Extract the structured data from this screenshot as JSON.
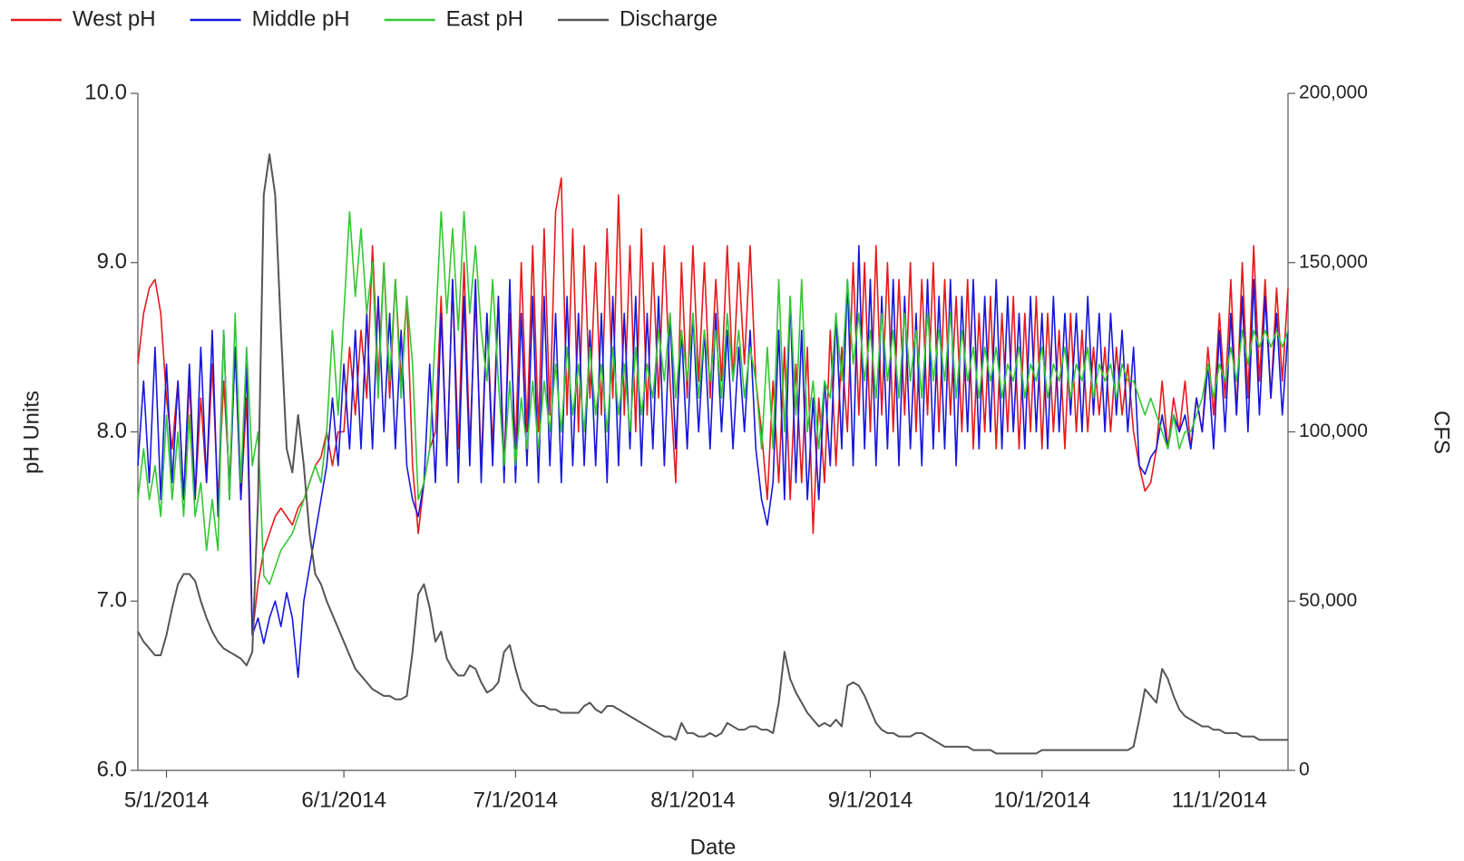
{
  "chart_data": {
    "type": "line",
    "x_label": "Date",
    "y_label": "pH Units",
    "y2_label": "CFS",
    "legend": "top-left",
    "grid": false,
    "xlim": [
      "4/26/2014",
      "11/13/2014"
    ],
    "xticks": [
      "5/1/2014",
      "6/1/2014",
      "7/1/2014",
      "8/1/2014",
      "9/1/2014",
      "10/1/2014",
      "11/1/2014"
    ],
    "ylim": [
      6,
      10
    ],
    "yticks": [
      {
        "value": 6,
        "label": "6.0"
      },
      {
        "value": 7,
        "label": "7.0"
      },
      {
        "value": 8,
        "label": "8.0"
      },
      {
        "value": 9,
        "label": "9.0"
      },
      {
        "value": 10,
        "label": "10.0"
      }
    ],
    "y2lim": [
      0,
      200000
    ],
    "y2ticks": [
      0,
      {
        "value": 50000,
        "label": "50,000"
      },
      {
        "value": 100000,
        "label": "100,000"
      },
      {
        "value": 150000,
        "label": "150,000"
      },
      {
        "value": 200000,
        "label": "200,000"
      }
    ],
    "x": [
      "4/26/2014",
      "4/27/2014",
      "4/28/2014",
      "4/29/2014",
      "4/30/2014",
      "5/1/2014",
      "5/2/2014",
      "5/3/2014",
      "5/4/2014",
      "5/5/2014",
      "5/6/2014",
      "5/7/2014",
      "5/8/2014",
      "5/9/2014",
      "5/10/2014",
      "5/11/2014",
      "5/12/2014",
      "5/13/2014",
      "5/14/2014",
      "5/15/2014",
      "5/16/2014",
      "5/17/2014",
      "5/18/2014",
      "5/19/2014",
      "5/20/2014",
      "5/21/2014",
      "5/22/2014",
      "5/23/2014",
      "5/24/2014",
      "5/25/2014",
      "5/26/2014",
      "5/27/2014",
      "5/28/2014",
      "5/29/2014",
      "5/30/2014",
      "5/31/2014",
      "6/1/2014",
      "6/2/2014",
      "6/3/2014",
      "6/4/2014",
      "6/5/2014",
      "6/6/2014",
      "6/7/2014",
      "6/8/2014",
      "6/9/2014",
      "6/10/2014",
      "6/11/2014",
      "6/12/2014",
      "6/13/2014",
      "6/14/2014",
      "6/15/2014",
      "6/16/2014",
      "6/17/2014",
      "6/18/2014",
      "6/19/2014",
      "6/20/2014",
      "6/21/2014",
      "6/22/2014",
      "6/23/2014",
      "6/24/2014",
      "6/25/2014",
      "6/26/2014",
      "6/27/2014",
      "6/28/2014",
      "6/29/2014",
      "6/30/2014",
      "7/1/2014",
      "7/2/2014",
      "7/3/2014",
      "7/4/2014",
      "7/5/2014",
      "7/6/2014",
      "7/7/2014",
      "7/8/2014",
      "7/9/2014",
      "7/10/2014",
      "7/11/2014",
      "7/12/2014",
      "7/13/2014",
      "7/14/2014",
      "7/15/2014",
      "7/16/2014",
      "7/17/2014",
      "7/18/2014",
      "7/19/2014",
      "7/20/2014",
      "7/21/2014",
      "7/22/2014",
      "7/23/2014",
      "7/24/2014",
      "7/25/2014",
      "7/26/2014",
      "7/27/2014",
      "7/28/2014",
      "7/29/2014",
      "7/30/2014",
      "7/31/2014",
      "8/1/2014",
      "8/2/2014",
      "8/3/2014",
      "8/4/2014",
      "8/5/2014",
      "8/6/2014",
      "8/7/2014",
      "8/8/2014",
      "8/9/2014",
      "8/10/2014",
      "8/11/2014",
      "8/12/2014",
      "8/13/2014",
      "8/14/2014",
      "8/15/2014",
      "8/16/2014",
      "8/17/2014",
      "8/18/2014",
      "8/19/2014",
      "8/20/2014",
      "8/21/2014",
      "8/22/2014",
      "8/23/2014",
      "8/24/2014",
      "8/25/2014",
      "8/26/2014",
      "8/27/2014",
      "8/28/2014",
      "8/29/2014",
      "8/30/2014",
      "8/31/2014",
      "9/1/2014",
      "9/2/2014",
      "9/3/2014",
      "9/4/2014",
      "9/5/2014",
      "9/6/2014",
      "9/7/2014",
      "9/8/2014",
      "9/9/2014",
      "9/10/2014",
      "9/11/2014",
      "9/12/2014",
      "9/13/2014",
      "9/14/2014",
      "9/15/2014",
      "9/16/2014",
      "9/17/2014",
      "9/18/2014",
      "9/19/2014",
      "9/20/2014",
      "9/21/2014",
      "9/22/2014",
      "9/23/2014",
      "9/24/2014",
      "9/25/2014",
      "9/26/2014",
      "9/27/2014",
      "9/28/2014",
      "9/29/2014",
      "9/30/2014",
      "10/1/2014",
      "10/2/2014",
      "10/3/2014",
      "10/4/2014",
      "10/5/2014",
      "10/6/2014",
      "10/7/2014",
      "10/8/2014",
      "10/9/2014",
      "10/10/2014",
      "10/11/2014",
      "10/12/2014",
      "10/13/2014",
      "10/14/2014",
      "10/15/2014",
      "10/16/2014",
      "10/17/2014",
      "10/18/2014",
      "10/19/2014",
      "10/20/2014",
      "10/21/2014",
      "10/22/2014",
      "10/23/2014",
      "10/24/2014",
      "10/25/2014",
      "10/26/2014",
      "10/27/2014",
      "10/28/2014",
      "10/29/2014",
      "10/30/2014",
      "10/31/2014",
      "11/1/2014",
      "11/2/2014",
      "11/3/2014",
      "11/4/2014",
      "11/5/2014",
      "11/6/2014",
      "11/7/2014",
      "11/8/2014",
      "11/9/2014",
      "11/10/2014",
      "11/11/2014",
      "11/12/2014",
      "11/13/2014"
    ],
    "series": [
      {
        "name": "West pH",
        "color": "#e8191c",
        "values": [
          8.4,
          8.7,
          8.85,
          8.9,
          8.7,
          8.2,
          7.9,
          8.3,
          7.6,
          8.3,
          7.6,
          8.2,
          7.7,
          8.4,
          7.6,
          8.3,
          7.7,
          8.5,
          7.6,
          8.2,
          6.8,
          7.1,
          7.3,
          7.4,
          7.5,
          7.55,
          7.5,
          7.45,
          7.55,
          7.6,
          7.7,
          7.8,
          7.85,
          8.0,
          7.8,
          8.0,
          8.0,
          8.5,
          8.1,
          8.6,
          8.2,
          9.1,
          8.3,
          9.0,
          8.2,
          8.9,
          8.3,
          8.8,
          7.8,
          7.4,
          7.7,
          7.9,
          8.0,
          8.8,
          7.8,
          8.9,
          7.9,
          9.0,
          7.9,
          8.8,
          7.8,
          8.7,
          7.9,
          8.8,
          7.8,
          8.7,
          7.9,
          9.0,
          8.0,
          9.1,
          8.0,
          9.2,
          8.1,
          9.3,
          9.5,
          8.1,
          9.2,
          8.0,
          9.1,
          8.2,
          9.0,
          8.1,
          9.2,
          8.2,
          9.4,
          8.1,
          9.1,
          8.0,
          9.2,
          8.1,
          9.0,
          8.2,
          9.1,
          8.3,
          7.7,
          9.0,
          8.2,
          9.1,
          8.3,
          9.0,
          8.2,
          8.9,
          8.3,
          9.1,
          8.3,
          9.0,
          8.4,
          9.1,
          8.3,
          8.0,
          7.6,
          8.3,
          7.7,
          8.5,
          7.6,
          8.4,
          7.7,
          8.5,
          7.4,
          8.2,
          7.7,
          8.6,
          7.8,
          8.5,
          8.0,
          9.0,
          8.1,
          9.0,
          8.0,
          9.1,
          8.1,
          9.0,
          8.0,
          8.9,
          8.1,
          9.0,
          8.0,
          8.9,
          8.1,
          9.0,
          8.0,
          8.9,
          8.1,
          8.8,
          8.0,
          8.9,
          7.9,
          8.7,
          8.0,
          8.8,
          7.9,
          8.7,
          8.0,
          8.8,
          7.9,
          8.7,
          8.0,
          8.8,
          7.9,
          8.7,
          8.0,
          8.6,
          7.9,
          8.7,
          8.0,
          8.6,
          8.0,
          8.5,
          8.1,
          8.5,
          8.0,
          8.5,
          8.1,
          8.4,
          8.0,
          7.8,
          7.65,
          7.7,
          7.9,
          8.3,
          7.9,
          8.2,
          8.0,
          8.3,
          7.9,
          8.2,
          8.0,
          8.5,
          8.1,
          8.7,
          8.2,
          8.9,
          8.1,
          9.0,
          8.2,
          9.1,
          8.3,
          8.9,
          8.2,
          8.85,
          8.3,
          8.85
        ]
      },
      {
        "name": "Middle pH",
        "color": "#1616de",
        "values": [
          7.8,
          8.3,
          7.7,
          8.5,
          7.6,
          8.4,
          7.7,
          8.3,
          7.6,
          8.4,
          7.6,
          8.5,
          7.7,
          8.6,
          7.5,
          8.6,
          7.6,
          8.5,
          7.6,
          8.4,
          6.8,
          6.9,
          6.75,
          6.9,
          7.0,
          6.85,
          7.05,
          6.9,
          6.55,
          7.0,
          7.2,
          7.4,
          7.6,
          7.8,
          8.2,
          7.8,
          8.4,
          7.9,
          8.6,
          7.9,
          8.7,
          7.9,
          8.8,
          8.0,
          8.7,
          7.9,
          8.6,
          7.8,
          7.6,
          7.5,
          7.7,
          8.4,
          7.7,
          8.7,
          7.8,
          8.9,
          7.7,
          8.8,
          7.8,
          8.9,
          7.7,
          8.7,
          7.8,
          8.8,
          7.7,
          8.9,
          7.7,
          8.7,
          7.8,
          8.8,
          7.7,
          8.8,
          7.8,
          8.7,
          7.7,
          8.8,
          7.8,
          8.7,
          7.8,
          8.6,
          7.8,
          8.7,
          7.7,
          8.8,
          7.8,
          8.7,
          7.9,
          8.8,
          7.8,
          8.7,
          7.9,
          8.8,
          7.8,
          8.7,
          7.9,
          8.6,
          7.9,
          8.7,
          8.0,
          8.6,
          7.9,
          8.7,
          8.0,
          8.6,
          7.9,
          8.5,
          8.0,
          8.6,
          7.9,
          7.6,
          7.45,
          7.7,
          8.6,
          7.6,
          8.8,
          7.7,
          8.6,
          7.6,
          8.2,
          7.6,
          8.3,
          7.8,
          8.7,
          7.9,
          8.9,
          7.8,
          9.1,
          7.9,
          8.9,
          7.8,
          8.8,
          7.9,
          8.9,
          7.8,
          8.8,
          7.9,
          8.7,
          7.8,
          8.9,
          7.9,
          8.8,
          7.9,
          8.9,
          7.8,
          8.8,
          8.0,
          8.9,
          7.9,
          8.8,
          8.0,
          8.9,
          7.9,
          8.8,
          8.0,
          8.7,
          7.9,
          8.8,
          8.0,
          8.7,
          7.9,
          8.8,
          8.0,
          8.7,
          8.1,
          8.7,
          8.0,
          8.8,
          8.1,
          8.7,
          8.0,
          8.7,
          8.1,
          8.6,
          8.0,
          8.5,
          7.8,
          7.75,
          7.85,
          7.9,
          8.1,
          7.9,
          8.1,
          8.0,
          8.1,
          7.9,
          8.2,
          8.0,
          8.4,
          7.9,
          8.6,
          8.0,
          8.7,
          8.1,
          8.8,
          8.0,
          8.9,
          8.1,
          8.8,
          8.2,
          8.7,
          8.1,
          8.6
        ]
      },
      {
        "name": "East pH",
        "color": "#33c733",
        "values": [
          7.6,
          7.9,
          7.6,
          7.8,
          7.5,
          8.1,
          7.6,
          8.0,
          7.5,
          8.1,
          7.5,
          7.7,
          7.3,
          7.6,
          7.3,
          8.6,
          7.6,
          8.7,
          7.7,
          8.5,
          7.8,
          8.0,
          7.15,
          7.1,
          7.2,
          7.3,
          7.35,
          7.4,
          7.5,
          7.6,
          7.7,
          7.8,
          7.7,
          8.0,
          8.6,
          8.1,
          8.7,
          9.3,
          8.8,
          9.2,
          8.7,
          9.0,
          8.2,
          9.0,
          8.3,
          8.9,
          8.2,
          8.8,
          8.4,
          7.6,
          7.7,
          7.9,
          8.6,
          9.3,
          8.7,
          9.2,
          8.6,
          9.3,
          8.7,
          9.1,
          8.6,
          8.3,
          8.9,
          8.3,
          7.8,
          8.3,
          7.8,
          8.2,
          7.9,
          8.3,
          7.9,
          8.3,
          8.0,
          8.4,
          8.0,
          8.5,
          8.1,
          8.4,
          8.0,
          8.5,
          8.1,
          8.4,
          8.0,
          8.5,
          8.1,
          8.4,
          8.0,
          8.5,
          8.1,
          8.4,
          8.2,
          8.6,
          8.3,
          8.7,
          8.2,
          8.6,
          8.3,
          8.7,
          8.2,
          8.6,
          8.3,
          8.6,
          8.2,
          8.7,
          8.3,
          8.6,
          8.2,
          8.5,
          8.3,
          7.9,
          8.5,
          7.9,
          8.9,
          8.0,
          8.8,
          8.1,
          8.9,
          8.0,
          8.3,
          7.9,
          8.3,
          8.2,
          8.7,
          8.3,
          8.9,
          8.4,
          8.7,
          8.3,
          8.6,
          8.2,
          8.7,
          8.3,
          8.6,
          8.2,
          8.7,
          8.3,
          8.6,
          8.2,
          8.7,
          8.3,
          8.6,
          8.3,
          8.7,
          8.2,
          8.6,
          8.3,
          8.5,
          8.2,
          8.5,
          8.3,
          8.5,
          8.2,
          8.4,
          8.3,
          8.5,
          8.2,
          8.4,
          8.3,
          8.5,
          8.2,
          8.4,
          8.3,
          8.5,
          8.2,
          8.4,
          8.3,
          8.5,
          8.2,
          8.4,
          8.3,
          8.4,
          8.2,
          8.4,
          8.3,
          8.3,
          8.2,
          8.1,
          8.2,
          8.1,
          8.0,
          7.9,
          8.1,
          7.9,
          8.0,
          8.0,
          8.1,
          8.2,
          8.4,
          8.2,
          8.4,
          8.3,
          8.5,
          8.3,
          8.6,
          8.4,
          8.6,
          8.5,
          8.6,
          8.5,
          8.6,
          8.5,
          8.6
        ]
      },
      {
        "name": "Discharge",
        "color": "#555555",
        "axis": "y2",
        "values": [
          41000,
          38000,
          36000,
          34000,
          34000,
          40000,
          48000,
          55000,
          58000,
          58000,
          56000,
          50000,
          45000,
          41000,
          38000,
          36000,
          35000,
          34000,
          33000,
          31000,
          35000,
          80000,
          170000,
          182000,
          170000,
          130000,
          95000,
          88000,
          105000,
          90000,
          70000,
          58000,
          55000,
          50000,
          46000,
          42000,
          38000,
          34000,
          30000,
          28000,
          26000,
          24000,
          23000,
          22000,
          22000,
          21000,
          21000,
          22000,
          35000,
          52000,
          55000,
          48000,
          38000,
          41000,
          33000,
          30000,
          28000,
          28000,
          31000,
          30000,
          26000,
          23000,
          24000,
          26000,
          35000,
          37000,
          30000,
          24000,
          22000,
          20000,
          19000,
          19000,
          18000,
          18000,
          17000,
          17000,
          17000,
          17000,
          19000,
          20000,
          18000,
          17000,
          19000,
          19000,
          18000,
          17000,
          16000,
          15000,
          14000,
          13000,
          12000,
          11000,
          10000,
          10000,
          9000,
          14000,
          11000,
          11000,
          10000,
          10000,
          11000,
          10000,
          11000,
          14000,
          13000,
          12000,
          12000,
          13000,
          13000,
          12000,
          12000,
          11000,
          20000,
          35000,
          27000,
          23000,
          20000,
          17000,
          15000,
          13000,
          14000,
          13000,
          15000,
          13000,
          25000,
          26000,
          25000,
          22000,
          18000,
          14000,
          12000,
          11000,
          11000,
          10000,
          10000,
          10000,
          11000,
          11000,
          10000,
          9000,
          8000,
          7000,
          7000,
          7000,
          7000,
          7000,
          6000,
          6000,
          6000,
          6000,
          5000,
          5000,
          5000,
          5000,
          5000,
          5000,
          5000,
          5000,
          6000,
          6000,
          6000,
          6000,
          6000,
          6000,
          6000,
          6000,
          6000,
          6000,
          6000,
          6000,
          6000,
          6000,
          6000,
          6000,
          7000,
          15000,
          24000,
          22000,
          20000,
          30000,
          27000,
          22000,
          18000,
          16000,
          15000,
          14000,
          13000,
          13000,
          12000,
          12000,
          11000,
          11000,
          11000,
          10000,
          10000,
          10000,
          9000,
          9000,
          9000,
          9000,
          9000,
          9000
        ]
      }
    ]
  }
}
